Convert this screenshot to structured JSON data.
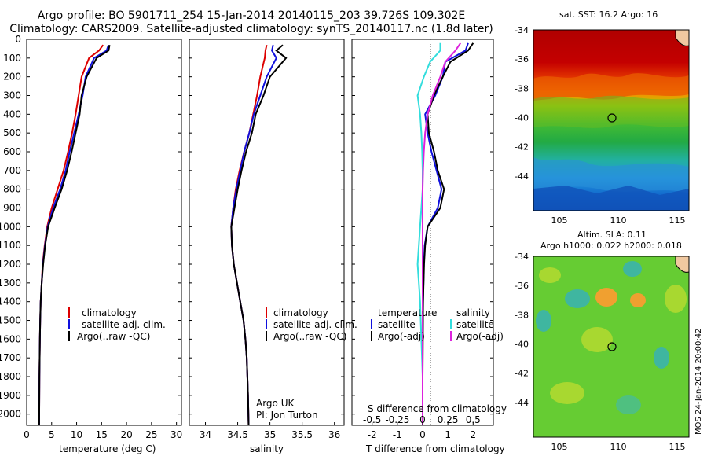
{
  "header": {
    "title_line1": "Argo profile: BO 5901711_254 15-Jan-2014 20140115_203 39.726S 109.302E",
    "title_line2": "Climatology: CARS2009. Satellite-adjusted climatology: synTS_20140117.nc (1.8d later)"
  },
  "depth_ticks": [
    0,
    100,
    200,
    300,
    400,
    500,
    600,
    700,
    800,
    900,
    1000,
    1100,
    1200,
    1300,
    1400,
    1500,
    1600,
    1700,
    1800,
    1900,
    2000
  ],
  "panels": {
    "temperature": {
      "xlabel": "temperature (deg C)",
      "xticks": [
        "0",
        "5",
        "10",
        "15",
        "20",
        "25",
        "30"
      ],
      "legend": [
        "climatology",
        "satellite-adj. clim.",
        "Argo(..raw -QC)"
      ]
    },
    "salinity": {
      "xlabel": "salinity",
      "xticks": [
        "34",
        "34.5",
        "35",
        "35.5",
        "36"
      ],
      "legend": [
        "climatology",
        "satellite-adj. clim.",
        "Argo(..raw -QC)"
      ],
      "note_line1": "Argo UK",
      "note_line2": "PI: Jon Turton"
    },
    "difference": {
      "xlabel": "T difference from climatology",
      "xticks": [
        "-2",
        "-1",
        "0",
        "1",
        "2"
      ],
      "top_label": "S difference from climatology",
      "sticks": [
        "-0.5",
        "-0.25",
        "0",
        "0.25",
        "0.5"
      ],
      "legend_temp_title": "temperature",
      "legend_sal_title": "salinity",
      "legend_temp": [
        "satellite",
        "Argo(-adj)"
      ],
      "legend_sal": [
        "satellite",
        "Argo(-adj)"
      ]
    }
  },
  "maps": {
    "sst_title": "sat. SST: 16.2 Argo: 16",
    "sla_title1": "Altim. SLA: 0.11",
    "sla_title2": "Argo h1000: 0.022 h2000: 0.018",
    "yticks": [
      "-34",
      "-36",
      "-38",
      "-40",
      "-42",
      "-44"
    ],
    "xticks": [
      "105",
      "110",
      "115"
    ],
    "credit": "IMOS 24-Jan-2014 20:00:42"
  },
  "colors": {
    "climatology": "#dd0000",
    "satellite": "#1010dd",
    "argo": "#000000",
    "sal_satellite": "#33dddd",
    "sal_argo": "#dd22dd"
  },
  "chart_data": [
    {
      "type": "line",
      "title": "",
      "xlabel": "temperature (deg C)",
      "ylabel": "",
      "xlim": [
        0,
        31
      ],
      "ylim": [
        2060,
        0
      ],
      "series": [
        {
          "name": "climatology",
          "x": [
            15.3,
            14.5,
            12.5,
            11.0,
            10.4,
            9.8,
            9.1,
            8.3,
            7.4,
            6.2,
            5.0,
            4.1,
            3.6,
            3.2,
            3.0,
            2.8,
            2.7,
            2.65,
            2.6,
            2.55,
            2.5
          ],
          "y": [
            30,
            60,
            100,
            200,
            300,
            400,
            500,
            600,
            700,
            800,
            900,
            1000,
            1100,
            1200,
            1300,
            1400,
            1500,
            1600,
            1700,
            1800,
            2060
          ]
        },
        {
          "name": "satellite-adj. clim.",
          "x": [
            16.4,
            16.0,
            13.5,
            11.8,
            11.2,
            10.4,
            9.5,
            8.6,
            7.8,
            6.7,
            5.3,
            4.2,
            3.65,
            3.25,
            3.0,
            2.8,
            2.7,
            2.65,
            2.6,
            2.55,
            2.5
          ],
          "y": [
            30,
            60,
            100,
            200,
            300,
            400,
            500,
            600,
            700,
            800,
            900,
            1000,
            1100,
            1200,
            1300,
            1400,
            1500,
            1600,
            1700,
            1800,
            2060
          ]
        },
        {
          "name": "Argo(..raw -QC)",
          "x": [
            16.6,
            16.4,
            14.0,
            12.0,
            11.0,
            10.6,
            9.8,
            9.0,
            8.1,
            7.0,
            5.6,
            4.3,
            3.7,
            3.3,
            3.0,
            2.8,
            2.7,
            2.65,
            2.6,
            2.55,
            2.5
          ],
          "y": [
            30,
            60,
            100,
            200,
            300,
            400,
            500,
            600,
            700,
            800,
            900,
            1000,
            1100,
            1200,
            1300,
            1400,
            1500,
            1600,
            1700,
            1800,
            2060
          ]
        }
      ]
    },
    {
      "type": "line",
      "title": "",
      "xlabel": "salinity",
      "ylabel": "",
      "xlim": [
        33.75,
        36.15
      ],
      "ylim": [
        2060,
        0
      ],
      "series": [
        {
          "name": "climatology",
          "x": [
            34.95,
            34.93,
            34.92,
            34.85,
            34.8,
            34.74,
            34.68,
            34.6,
            34.53,
            34.47,
            34.43,
            34.4,
            34.41,
            34.44,
            34.49,
            34.54,
            34.59,
            34.62,
            34.64,
            34.65,
            34.66,
            34.67
          ],
          "y": [
            30,
            60,
            100,
            200,
            300,
            400,
            500,
            600,
            700,
            800,
            900,
            1000,
            1100,
            1200,
            1300,
            1400,
            1500,
            1600,
            1700,
            1800,
            1900,
            2060
          ]
        },
        {
          "name": "satellite-adj. clim.",
          "x": [
            35.05,
            35.03,
            35.1,
            34.95,
            34.85,
            34.75,
            34.68,
            34.6,
            34.54,
            34.48,
            34.43,
            34.4,
            34.41,
            34.44,
            34.49,
            34.54,
            34.59,
            34.62,
            34.64,
            34.65,
            34.66,
            34.67
          ],
          "y": [
            30,
            60,
            100,
            200,
            300,
            400,
            500,
            600,
            700,
            800,
            900,
            1000,
            1100,
            1200,
            1300,
            1400,
            1500,
            1600,
            1700,
            1800,
            1900,
            2060
          ]
        },
        {
          "name": "Argo(..raw -QC)",
          "x": [
            35.2,
            35.1,
            35.25,
            35.0,
            34.9,
            34.78,
            34.72,
            34.63,
            34.56,
            34.5,
            34.45,
            34.4,
            34.41,
            34.44,
            34.49,
            34.54,
            34.59,
            34.62,
            34.64,
            34.65,
            34.66,
            34.67
          ],
          "y": [
            30,
            60,
            100,
            200,
            300,
            400,
            500,
            600,
            700,
            800,
            900,
            1000,
            1100,
            1200,
            1300,
            1400,
            1500,
            1600,
            1700,
            1800,
            1900,
            2060
          ]
        }
      ]
    },
    {
      "type": "line",
      "title": "",
      "xlabel": "T difference from climatology",
      "ylabel": "",
      "xlim": [
        -2.8,
        2.8
      ],
      "ylim": [
        2060,
        0
      ],
      "series": [
        {
          "name": "temperature satellite",
          "x": [
            1.8,
            1.7,
            0.9,
            0.8,
            0.5,
            0.1,
            0.2,
            0.35,
            0.55,
            0.75,
            0.6,
            0.2,
            0.08,
            0.05,
            0.02,
            0.0,
            0.0,
            0.0,
            0.0
          ],
          "y": [
            20,
            60,
            120,
            200,
            300,
            400,
            500,
            600,
            700,
            800,
            900,
            1000,
            1100,
            1200,
            1400,
            1600,
            1800,
            1900,
            2060
          ]
        },
        {
          "name": "temperature Argo(-adj)",
          "x": [
            2.0,
            1.8,
            1.1,
            0.8,
            0.45,
            0.2,
            0.25,
            0.45,
            0.6,
            0.85,
            0.7,
            0.2,
            0.1,
            0.06,
            0.02,
            0.01,
            0.0,
            0.0,
            0.0
          ],
          "y": [
            20,
            60,
            120,
            200,
            300,
            400,
            500,
            600,
            700,
            800,
            900,
            1000,
            1100,
            1200,
            1400,
            1600,
            1800,
            1900,
            2060
          ]
        },
        {
          "name": "salinity satellite",
          "x": [
            0.7,
            0.7,
            0.3,
            0.05,
            -0.2,
            -0.1,
            -0.05,
            -0.02,
            0.0,
            0.0,
            -0.05,
            -0.1,
            -0.15,
            -0.2,
            -0.1,
            -0.05,
            0.0,
            0.0,
            0.0
          ],
          "y": [
            20,
            60,
            120,
            200,
            300,
            400,
            500,
            600,
            700,
            800,
            900,
            1000,
            1100,
            1200,
            1400,
            1600,
            1800,
            1900,
            2060
          ]
        },
        {
          "name": "salinity Argo(-adj)",
          "x": [
            1.5,
            1.3,
            0.9,
            0.7,
            0.4,
            0.2,
            0.1,
            0.05,
            0.02,
            0.0,
            0.0,
            0.0,
            0.0,
            0.0,
            0.0,
            0.0,
            0.0,
            0.0,
            0.0
          ],
          "y": [
            20,
            60,
            120,
            200,
            300,
            400,
            500,
            600,
            700,
            800,
            900,
            1000,
            1100,
            1200,
            1400,
            1600,
            1800,
            1900,
            2060
          ]
        }
      ]
    },
    {
      "type": "heatmap",
      "title": "sat. SST: 16.2 Argo: 16",
      "xticks": [
        "105",
        "110",
        "115"
      ],
      "yticks": [
        "-34",
        "-36",
        "-38",
        "-40",
        "-42",
        "-44"
      ],
      "marker": {
        "lon": 109.302,
        "lat": -39.726
      }
    },
    {
      "type": "heatmap",
      "title": "Altim. SLA: 0.11",
      "xticks": [
        "105",
        "110",
        "115"
      ],
      "yticks": [
        "-34",
        "-36",
        "-38",
        "-40",
        "-42",
        "-44"
      ],
      "marker": {
        "lon": 109.302,
        "lat": -39.726
      }
    }
  ]
}
